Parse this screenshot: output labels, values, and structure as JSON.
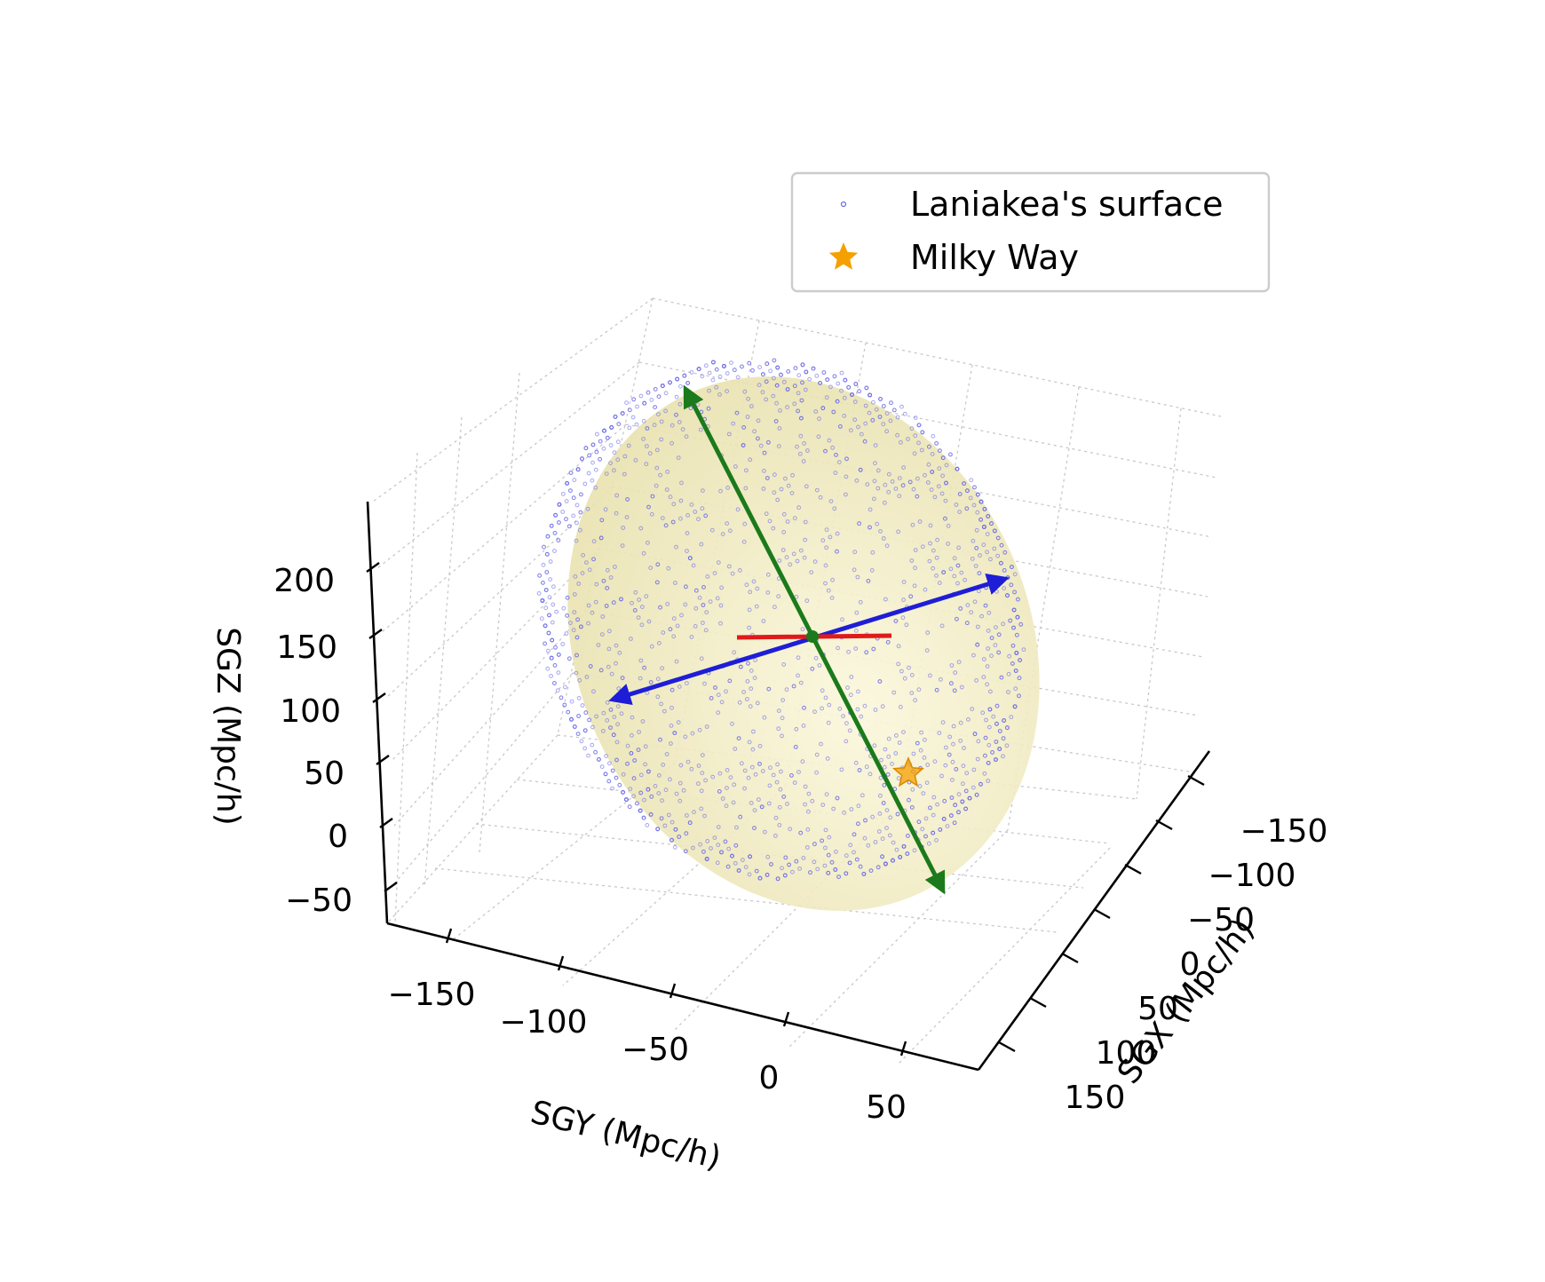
{
  "chart_data": {
    "type": "scatter",
    "projection": "3d",
    "title": "",
    "xlabel": "SGX (Mpc/h)",
    "ylabel": "SGY (Mpc/h)",
    "zlabel": "SGZ (Mpc/h)",
    "x_ticks": [
      "−150",
      "−100",
      "−50",
      "0",
      "50",
      "100",
      "150"
    ],
    "y_ticks": [
      "−150",
      "−100",
      "−50",
      "0",
      "50"
    ],
    "z_ticks": [
      "−50",
      "0",
      "50",
      "100",
      "150",
      "200"
    ],
    "xlim": [
      -180,
      180
    ],
    "ylim": [
      -190,
      90
    ],
    "zlim": [
      -70,
      240
    ],
    "grid": true,
    "legend": {
      "placement": "top-right",
      "entries": [
        {
          "label": "Laniakea's surface",
          "marker": "dot",
          "color": "#6a6ae8"
        },
        {
          "label": "Milky Way",
          "marker": "star",
          "color": "#f5a000"
        }
      ]
    },
    "series": [
      {
        "name": "Laniakea's surface",
        "kind": "point-cloud",
        "color": "#6a6ae8"
      },
      {
        "name": "Milky Way",
        "kind": "marker",
        "color": "#f5a000"
      }
    ],
    "principal_axes_colors": [
      "#1e1ed6",
      "#1b7a1b",
      "#e01a1a"
    ],
    "ellipsoid_color": "#e9e3a8"
  }
}
